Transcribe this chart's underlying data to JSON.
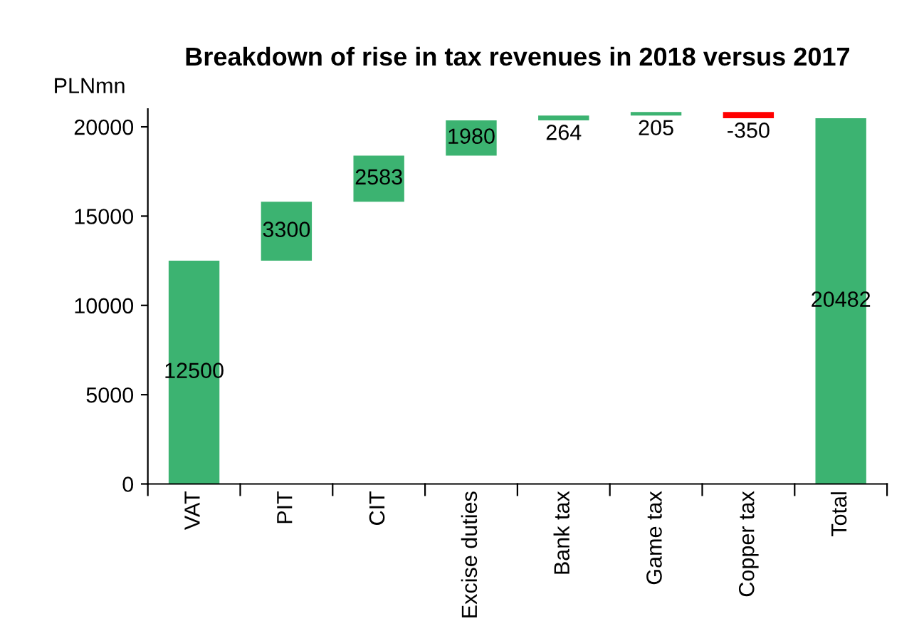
{
  "chart_data": {
    "type": "bar",
    "title": "Breakdown of rise in tax revenues in 2018 versus 2017",
    "ylabel": "PLNmn",
    "categories": [
      "VAT",
      "PIT",
      "CIT",
      "Excise duties",
      "Bank tax",
      "Game tax",
      "Copper tax",
      "Total"
    ],
    "values": [
      12500,
      3300,
      2583,
      1980,
      264,
      205,
      -350,
      20482
    ],
    "base": [
      0,
      12500,
      15800,
      18383,
      20363,
      20627,
      20832,
      0
    ],
    "colors": [
      "#3cb371",
      "#3cb371",
      "#3cb371",
      "#3cb371",
      "#3cb371",
      "#3cb371",
      "#ff0000",
      "#3cb371"
    ],
    "data_labels": true,
    "ylim": [
      0,
      21000
    ],
    "yticks": [
      0,
      5000,
      10000,
      15000,
      20000
    ],
    "grid": false,
    "legend": false
  }
}
